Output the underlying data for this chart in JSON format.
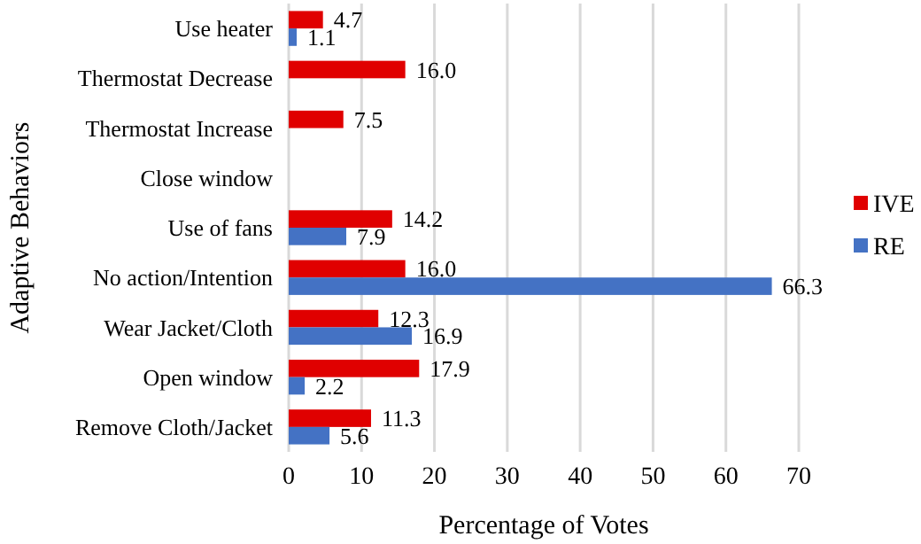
{
  "chart_data": {
    "type": "bar",
    "orientation": "horizontal",
    "ylabel": "Adaptive Behaviors",
    "xlabel": "Percentage of Votes",
    "categories": [
      "Use heater",
      "Thermostat Decrease",
      "Thermostat Increase",
      "Close window",
      "Use of fans",
      "No action/Intention",
      "Wear Jacket/Cloth",
      "Open window",
      "Remove Cloth/Jacket"
    ],
    "series": [
      {
        "name": "IVE",
        "color": "#e00000",
        "values": [
          4.7,
          16,
          7.5,
          null,
          14.2,
          16,
          12.3,
          17.9,
          11.3
        ],
        "value_labels": [
          "4.7",
          "16.0",
          "7.5",
          null,
          "14.2",
          "16.0",
          "12.3",
          "17.9",
          "11.3"
        ]
      },
      {
        "name": "RE",
        "color": "#4472c4",
        "values": [
          1.1,
          null,
          null,
          null,
          7.9,
          66.3,
          16.9,
          2.2,
          5.6
        ],
        "value_labels": [
          "1.1",
          null,
          null,
          null,
          "7.9",
          "66.3",
          "16.9",
          "2.2",
          "5.6"
        ]
      }
    ],
    "xlim": [
      0,
      70
    ],
    "xticks": [
      0,
      10,
      20,
      30,
      40,
      50,
      60,
      70
    ],
    "grid": "x",
    "legend": "right"
  }
}
